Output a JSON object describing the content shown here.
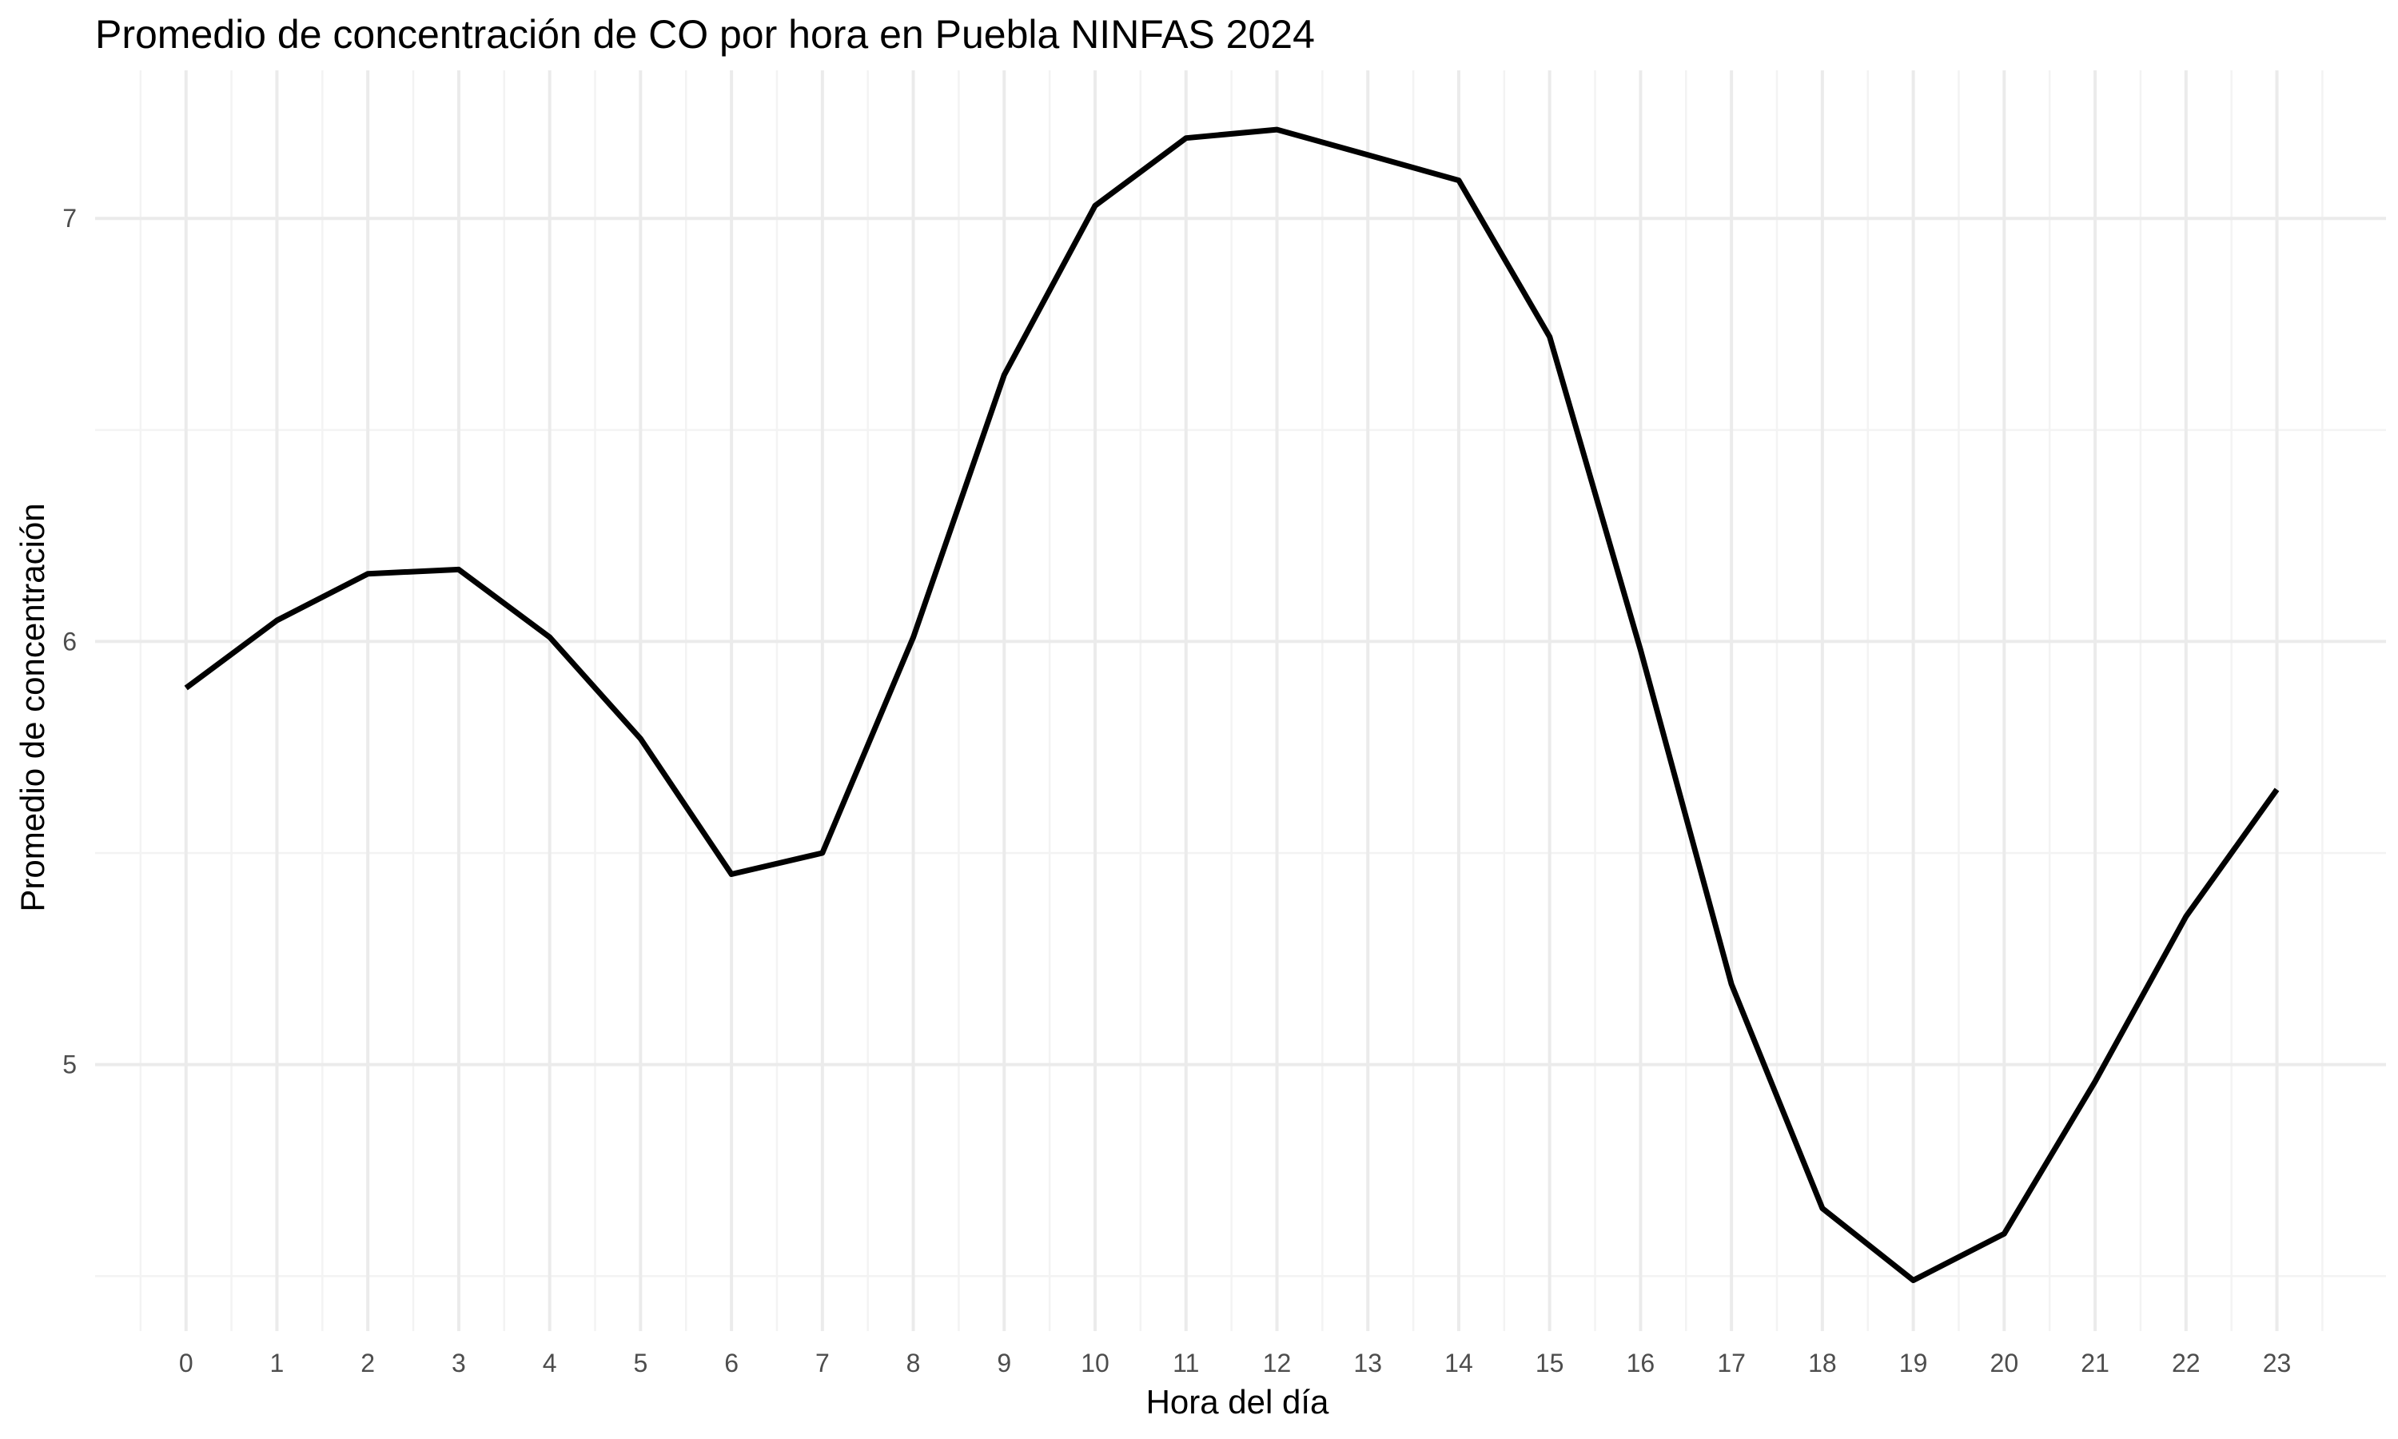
{
  "chart_data": {
    "type": "line",
    "title": "Promedio de concentración de CO por hora en Puebla NINFAS 2024",
    "xlabel": "Hora del día",
    "ylabel": "Promedio de concentración",
    "x": [
      0,
      1,
      2,
      3,
      4,
      5,
      6,
      7,
      8,
      9,
      10,
      11,
      12,
      13,
      14,
      15,
      16,
      17,
      18,
      19,
      20,
      21,
      22,
      23
    ],
    "x_tick_labels": [
      "0",
      "1",
      "2",
      "3",
      "4",
      "5",
      "6",
      "7",
      "8",
      "9",
      "10",
      "11",
      "12",
      "13",
      "14",
      "15",
      "16",
      "17",
      "18",
      "19",
      "20",
      "21",
      "22",
      "23"
    ],
    "series": [
      {
        "values": [
          5.89,
          6.05,
          6.16,
          6.17,
          6.01,
          5.77,
          5.45,
          5.5,
          6.01,
          6.63,
          7.03,
          7.19,
          7.21,
          7.15,
          7.09,
          6.72,
          5.98,
          5.19,
          4.66,
          4.49,
          4.6,
          4.96,
          5.35,
          5.65
        ],
        "color": "#000000"
      }
    ],
    "y_ticks": [
      5,
      6,
      7
    ],
    "y_tick_labels": [
      "5",
      "6",
      "7"
    ],
    "xlim": [
      -1.0,
      24.2
    ],
    "ylim": [
      4.37,
      7.35
    ],
    "grid": true,
    "minor_grid": true,
    "legend": "none",
    "theme": "minimal"
  }
}
